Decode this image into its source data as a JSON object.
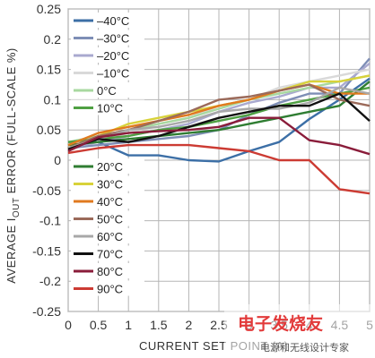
{
  "chart_data": {
    "type": "line",
    "xlabel": "CURRENT SET POINT (A)",
    "ylabel": "AVERAGE IOUT ERROR (FULL-SCALE %)",
    "ylabel_parts": {
      "pre": "AVERAGE I",
      "sub": "OUT",
      "post": " ERROR (FULL-SCALE %)"
    },
    "xlim": [
      0,
      5
    ],
    "ylim": [
      -0.25,
      0.25
    ],
    "x_ticks": [
      "0",
      "0.5",
      "1",
      "1.5",
      "2",
      "2.5",
      "3",
      "3.5",
      "4",
      "4.5",
      "5"
    ],
    "y_ticks": [
      "0.25",
      "0.2",
      "0.15",
      "0.1",
      "0.05",
      "0",
      "-0.05",
      "-0.1",
      "-0.15",
      "-0.2",
      "-0.25"
    ],
    "grid": true,
    "legend_placement": "left, two columns of entries",
    "x": [
      0,
      0.5,
      1,
      1.5,
      2,
      2.5,
      3,
      3.5,
      4,
      4.5,
      5
    ],
    "series": [
      {
        "name": "–40°C",
        "color": "#3c6fa6",
        "values": [
          0.03,
          0.03,
          0.008,
          0.008,
          0.0,
          -0.002,
          0.015,
          0.03,
          0.068,
          0.1,
          0.135
        ]
      },
      {
        "name": "–30°C",
        "color": "#7e8eb6",
        "values": [
          0.02,
          0.025,
          0.03,
          0.035,
          0.04,
          0.05,
          0.075,
          0.095,
          0.11,
          0.11,
          0.168
        ]
      },
      {
        "name": "–20°C",
        "color": "#a9a9cf",
        "values": [
          0.02,
          0.03,
          0.04,
          0.05,
          0.06,
          0.08,
          0.095,
          0.105,
          0.12,
          0.12,
          0.16
        ]
      },
      {
        "name": "–10°C",
        "color": "#d9d9d9",
        "values": [
          0.025,
          0.035,
          0.045,
          0.06,
          0.07,
          0.09,
          0.1,
          0.12,
          0.13,
          0.14,
          0.15
        ]
      },
      {
        "name": "0°C",
        "color": "#a8d8a0",
        "values": [
          0.03,
          0.04,
          0.05,
          0.06,
          0.07,
          0.085,
          0.1,
          0.11,
          0.12,
          0.13,
          0.14
        ]
      },
      {
        "name": "10°C",
        "color": "#4fa043",
        "values": [
          0.03,
          0.035,
          0.04,
          0.05,
          0.055,
          0.065,
          0.075,
          0.09,
          0.1,
          0.11,
          0.12
        ]
      },
      {
        "name": "20°C",
        "color": "#2f7d32",
        "values": [
          0.025,
          0.03,
          0.035,
          0.04,
          0.045,
          0.05,
          0.06,
          0.07,
          0.08,
          0.09,
          0.13
        ]
      },
      {
        "name": "30°C",
        "color": "#d8d23a",
        "values": [
          0.02,
          0.04,
          0.06,
          0.07,
          0.08,
          0.09,
          0.1,
          0.115,
          0.13,
          0.13,
          0.14
        ]
      },
      {
        "name": "40°C",
        "color": "#e07a1f",
        "values": [
          0.025,
          0.045,
          0.055,
          0.065,
          0.075,
          0.09,
          0.1,
          0.115,
          0.125,
          0.11,
          0.11
        ]
      },
      {
        "name": "50°C",
        "color": "#9b6a5a",
        "values": [
          0.02,
          0.04,
          0.05,
          0.065,
          0.08,
          0.1,
          0.105,
          0.115,
          0.125,
          0.1,
          0.09
        ]
      },
      {
        "name": "60°C",
        "color": "#a8a8a8",
        "values": [
          0.02,
          0.035,
          0.05,
          0.055,
          0.065,
          0.08,
          0.085,
          0.085,
          0.095,
          0.12,
          0.11
        ]
      },
      {
        "name": "70°C",
        "color": "#111111",
        "values": [
          0.018,
          0.035,
          0.03,
          0.04,
          0.055,
          0.07,
          0.08,
          0.09,
          0.09,
          0.11,
          0.065
        ]
      },
      {
        "name": "80°C",
        "color": "#8a1c3a",
        "values": [
          0.015,
          0.038,
          0.045,
          0.048,
          0.05,
          0.055,
          0.07,
          0.07,
          0.033,
          0.025,
          0.01
        ]
      },
      {
        "name": "90°C",
        "color": "#cc3b33",
        "values": [
          0.012,
          0.02,
          0.025,
          0.025,
          0.025,
          0.02,
          0.015,
          0.0,
          0.0,
          -0.048,
          -0.055
        ]
      }
    ]
  },
  "watermark": {
    "title": "电子发烧友",
    "subtitle": "电源和无线设计专家"
  }
}
